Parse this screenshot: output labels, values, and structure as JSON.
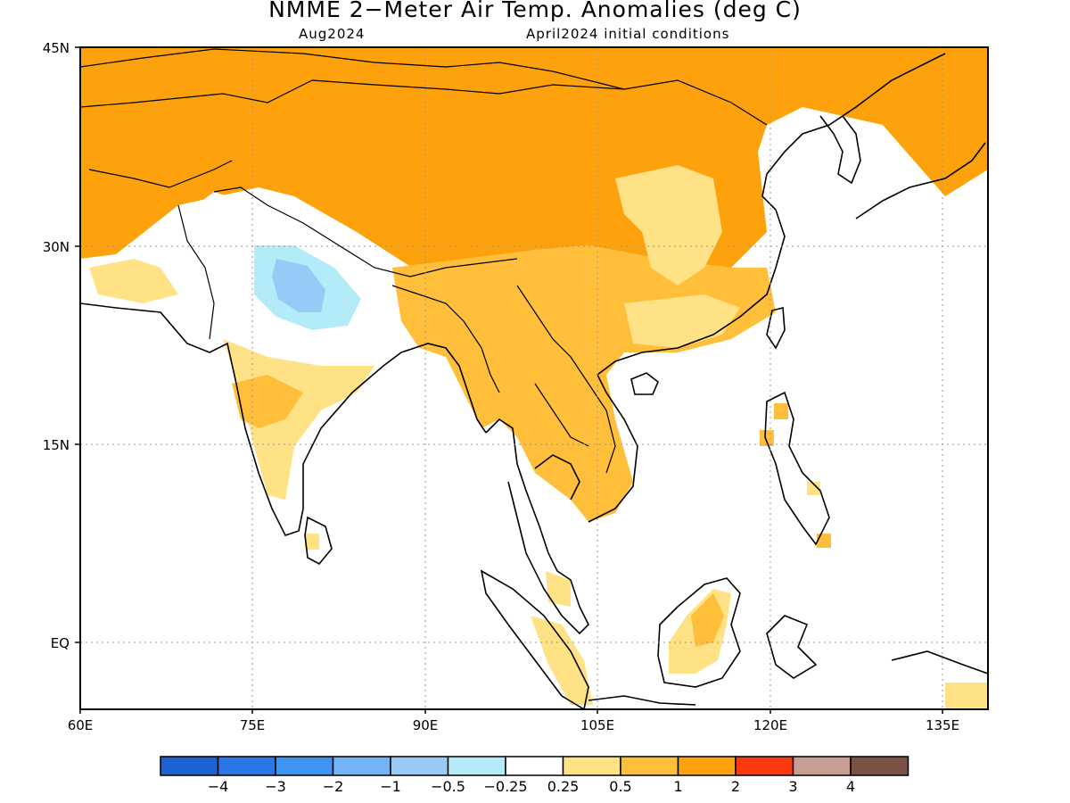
{
  "title": "NMME 2−Meter Air Temp. Anomalies (deg C)",
  "subtitle_left": "Aug2024",
  "subtitle_right": "April2024 initial conditions",
  "map": {
    "region": "South and East Asia",
    "lon_range": [
      60,
      140
    ],
    "lat_range": [
      -6,
      45
    ],
    "lon_ticks": [
      "60E",
      "75E",
      "90E",
      "105E",
      "120E",
      "135E"
    ],
    "lat_ticks": [
      "45N",
      "30N",
      "15N",
      "EQ"
    ],
    "gridlines": "dotted"
  },
  "colorbar": {
    "colors": [
      "#1d62d1",
      "#2a77e8",
      "#3f93f3",
      "#74b3f5",
      "#97caf7",
      "#b3ebf9",
      "#ffffff",
      "#ffe285",
      "#ffbf3a",
      "#fda10c",
      "#fb3b0e",
      "#c89e94",
      "#7c5146"
    ],
    "labels": [
      "−4",
      "−3",
      "−2",
      "−1",
      "−0.5",
      "−0.25",
      "0.25",
      "0.5",
      "1",
      "2",
      "3",
      "4"
    ]
  }
}
